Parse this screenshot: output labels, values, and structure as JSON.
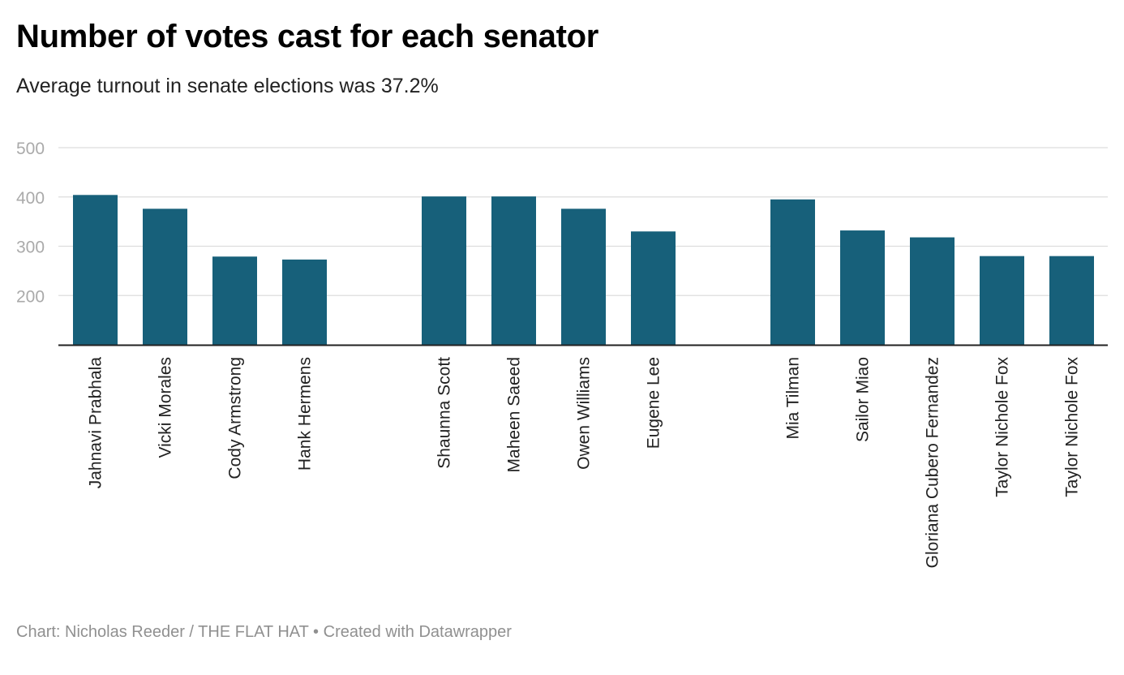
{
  "chart_data": {
    "type": "bar",
    "title": "Number of votes cast for each senator",
    "subtitle": "Average turnout in senate elections was 37.2%",
    "xlabel": "",
    "ylabel": "",
    "ylim": [
      100,
      500
    ],
    "yticks": [
      200,
      300,
      400,
      500
    ],
    "grid": true,
    "colors": {
      "bar": "#17607a",
      "grid": "#dddddd",
      "axis": "#222222",
      "tick_text": "#aaaaaa"
    },
    "groups": [
      {
        "categories": [
          "Jahnavi Prabhala",
          "Vicki Morales",
          "Cody Armstrong",
          "Hank Hermens"
        ],
        "values": [
          404,
          376,
          279,
          273
        ]
      },
      {
        "categories": [
          "Shaunna Scott",
          "Maheen Saeed",
          "Owen Williams",
          "Eugene Lee"
        ],
        "values": [
          401,
          401,
          376,
          330
        ]
      },
      {
        "categories": [
          "Mia Tilman",
          "Sailor Miao",
          "Gloriana Cubero Fernandez",
          "Taylor Nichole Fox",
          "Taylor Nichole Fox"
        ],
        "values": [
          395,
          332,
          318,
          280,
          280
        ]
      }
    ]
  },
  "footer": {
    "credit": "Chart: Nicholas Reeder / THE FLAT HAT",
    "separator": " • ",
    "tool": "Created with Datawrapper"
  }
}
